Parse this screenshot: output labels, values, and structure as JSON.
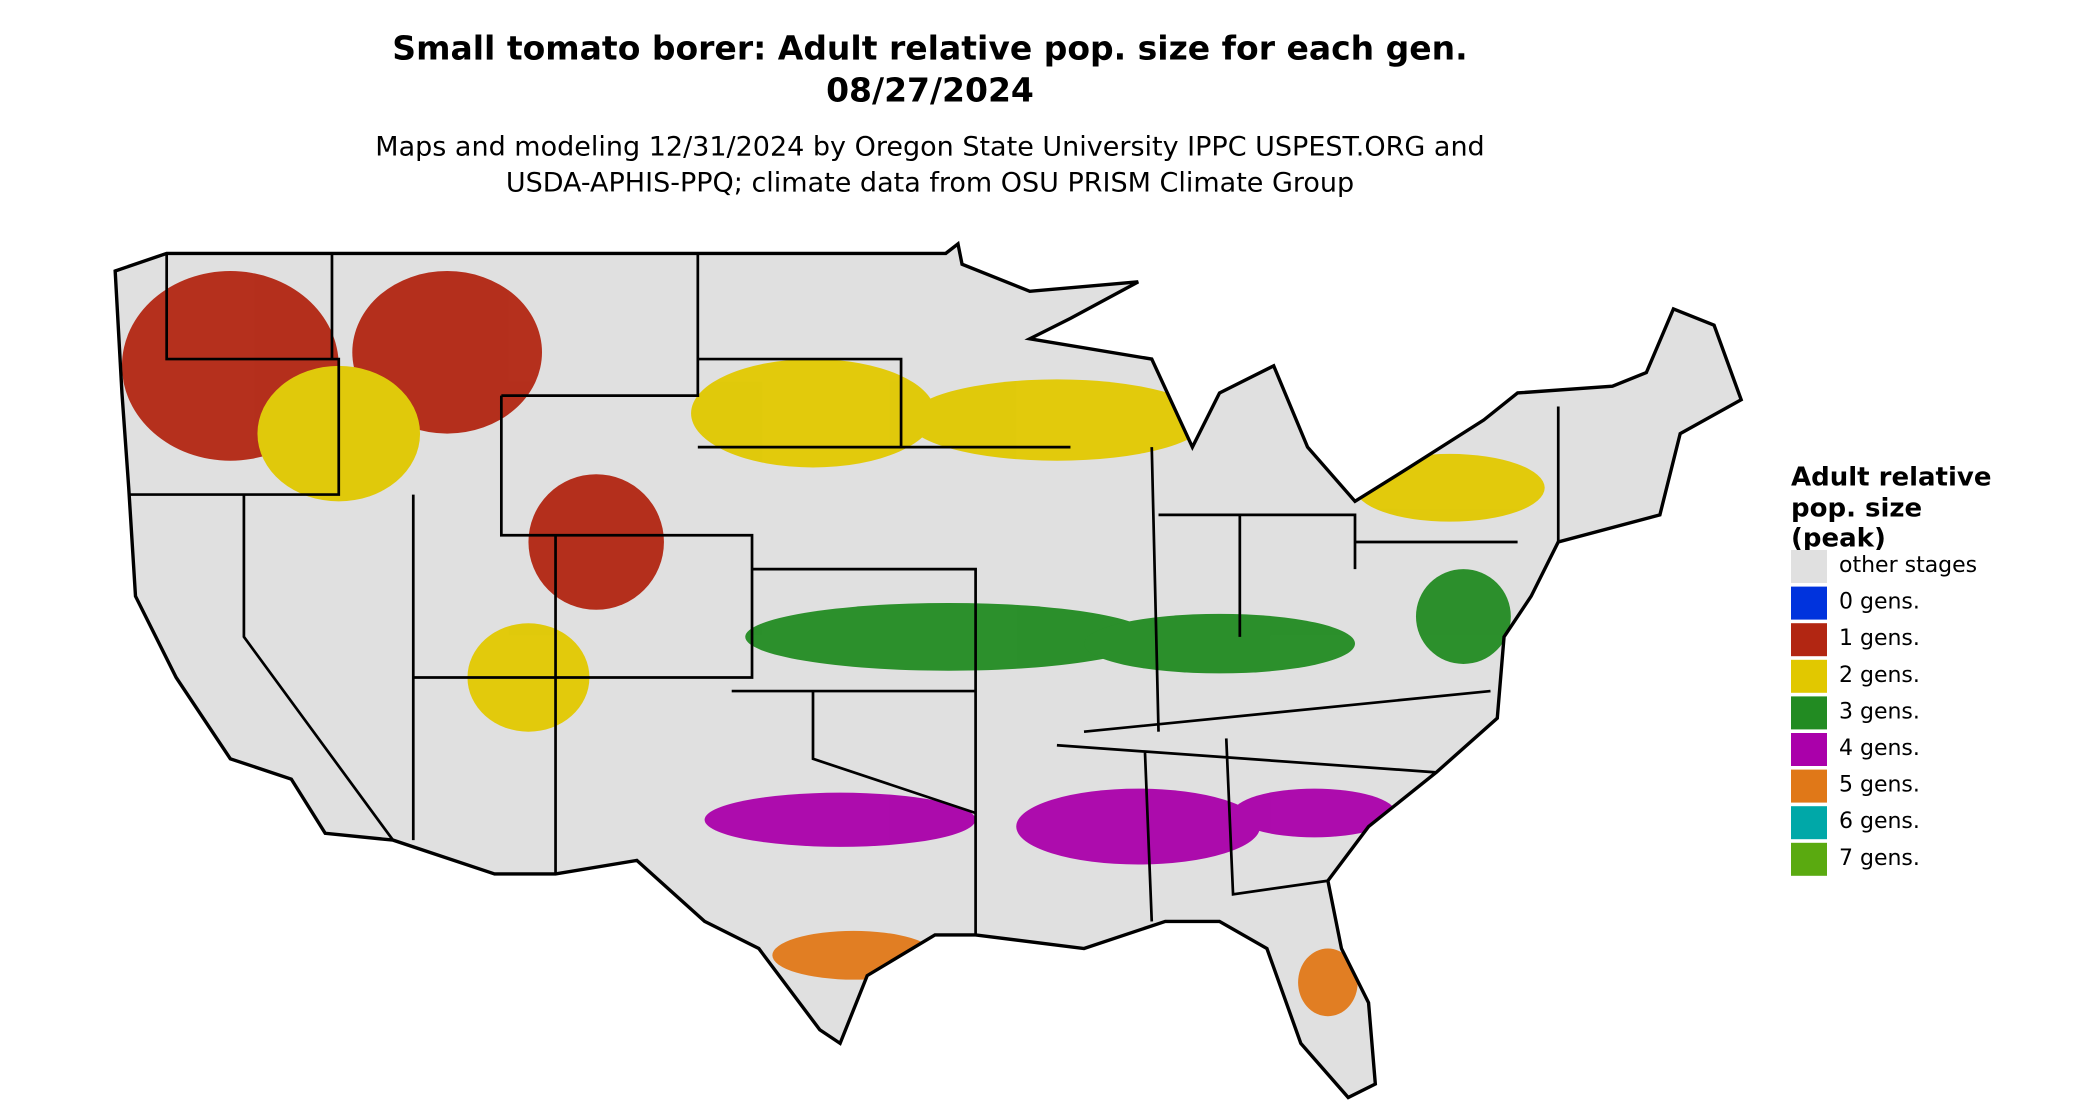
{
  "header": {
    "title": "Small tomato borer: Adult relative pop. size for each gen.",
    "date": "08/27/2024",
    "subtitle": [
      "Maps and modeling 12/31/2024 by Oregon State University IPPC USPEST.ORG and",
      "USDA-APHIS-PPQ; climate data from OSU PRISM Climate Group"
    ]
  },
  "legend": {
    "title": [
      "Adult relative",
      "pop. size",
      "(peak)"
    ],
    "items": [
      {
        "label": "other stages",
        "color": "#e0e0e0"
      },
      {
        "label": "0 gens.",
        "color": "#0033dd"
      },
      {
        "label": "1 gens.",
        "color": "#b22612"
      },
      {
        "label": "2 gens.",
        "color": "#e1c800"
      },
      {
        "label": "3 gens.",
        "color": "#228b22"
      },
      {
        "label": "4 gens.",
        "color": "#aa00aa"
      },
      {
        "label": "5 gens.",
        "color": "#e07818"
      },
      {
        "label": "6 gens.",
        "color": "#00a8a8"
      },
      {
        "label": "7 gens.",
        "color": "#5aaa10"
      }
    ]
  }
}
